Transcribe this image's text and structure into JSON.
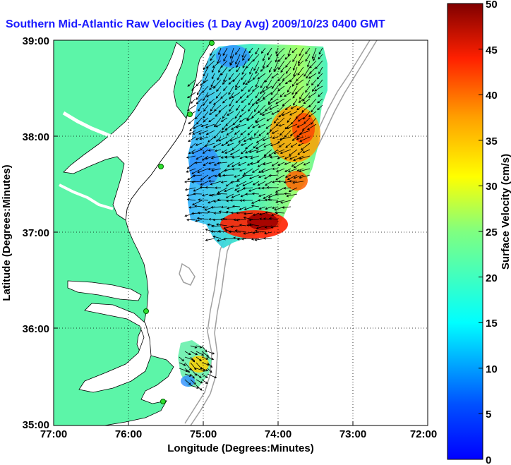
{
  "title": "Southern Mid-Atlantic Raw Velocities (1 Day Avg) 2009/10/23 0400 GMT",
  "map": {
    "xlabel": "Longitude (Degrees:Minutes)",
    "ylabel": "Latitude (Degrees:Minutes)",
    "x_ticks": [
      "77:00",
      "76:00",
      "75:00",
      "74:00",
      "73:00",
      "72:00"
    ],
    "y_ticks": [
      "39:00",
      "38:00",
      "37:00",
      "36:00",
      "35:00"
    ],
    "land_color": "#5cf5a8",
    "water_color": "#ffffff",
    "grid": "dotted"
  },
  "colorbar": {
    "label": "Surface Velocity (cm/s)",
    "ticks": [
      "50",
      "45",
      "40",
      "35",
      "30",
      "25",
      "20",
      "15",
      "10",
      "5",
      "0"
    ],
    "min": 0,
    "max": 50,
    "colormap": "jet"
  }
}
